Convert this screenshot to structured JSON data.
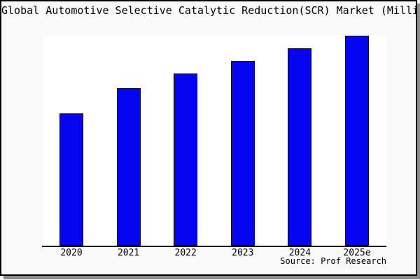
{
  "page": {
    "background_color": "#ffffff",
    "card_background_color": "#f9f9f9",
    "plot_background_color": "#ffffff",
    "shadow_color": "#8e8e8e",
    "border_color": "#000000"
  },
  "chart_data": {
    "type": "bar",
    "title": "Global Automotive Selective Catalytic Reduction(SCR) Market (Million USD)",
    "title_visible_clipped": "bal Automotive Selective Catalytic Reduction(SCR) Market (Million U",
    "categories": [
      "2020",
      "2021",
      "2022",
      "2023",
      "2024",
      "2025e"
    ],
    "values": [
      63,
      75,
      82,
      88,
      94,
      100
    ],
    "values_estimated": true,
    "ylim": [
      0,
      100.5
    ],
    "xlabel": "",
    "ylabel": "",
    "yaxis_ticks_visible": false,
    "grid": false,
    "legend": null,
    "bar_color": "#0505f0",
    "bar_border_color": "#000000",
    "source": "Source: Prof Research"
  }
}
